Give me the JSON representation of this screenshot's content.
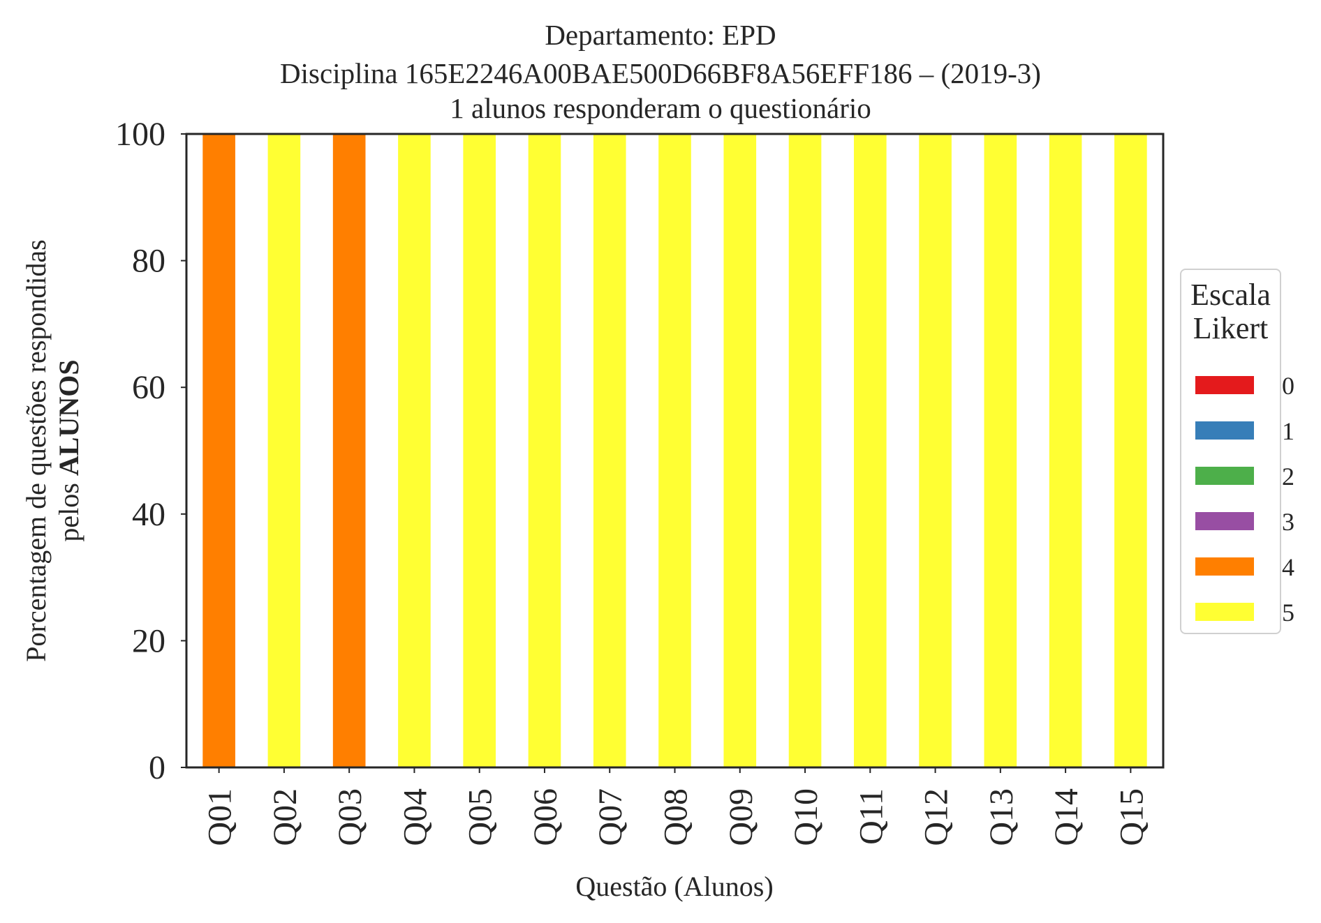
{
  "chart_data": {
    "type": "bar",
    "stacked": true,
    "title": [
      "Departamento: EPD",
      "Disciplina 165E2246A00BAE500D66BF8A56EFF186 – (2019-3)",
      "1 alunos responderam o questionário"
    ],
    "xlabel": "Questão (Alunos)",
    "ylabel_line1": "Porcentagem de questões respondidas",
    "ylabel_line2_prefix": "pelos ",
    "ylabel_line2_bold": "ALUNOS",
    "ylim": [
      0,
      100
    ],
    "yticks": [
      "0",
      "20",
      "40",
      "60",
      "80",
      "100"
    ],
    "categories": [
      "Q01",
      "Q02",
      "Q03",
      "Q04",
      "Q05",
      "Q06",
      "Q07",
      "Q08",
      "Q09",
      "Q10",
      "Q11",
      "Q12",
      "Q13",
      "Q14",
      "Q15"
    ],
    "legend": {
      "title_line1": "Escala",
      "title_line2": "Likert",
      "placement": "right"
    },
    "series": [
      {
        "name": "0",
        "color": "#e41a1c",
        "values": [
          0,
          0,
          0,
          0,
          0,
          0,
          0,
          0,
          0,
          0,
          0,
          0,
          0,
          0,
          0
        ]
      },
      {
        "name": "1",
        "color": "#377eb8",
        "values": [
          0,
          0,
          0,
          0,
          0,
          0,
          0,
          0,
          0,
          0,
          0,
          0,
          0,
          0,
          0
        ]
      },
      {
        "name": "2",
        "color": "#4daf4a",
        "values": [
          0,
          0,
          0,
          0,
          0,
          0,
          0,
          0,
          0,
          0,
          0,
          0,
          0,
          0,
          0
        ]
      },
      {
        "name": "3",
        "color": "#984ea3",
        "values": [
          0,
          0,
          0,
          0,
          0,
          0,
          0,
          0,
          0,
          0,
          0,
          0,
          0,
          0,
          0
        ]
      },
      {
        "name": "4",
        "color": "#ff7f00",
        "values": [
          100,
          0,
          100,
          0,
          0,
          0,
          0,
          0,
          0,
          0,
          0,
          0,
          0,
          0,
          0
        ]
      },
      {
        "name": "5",
        "color": "#ffff33",
        "values": [
          0,
          100,
          0,
          100,
          100,
          100,
          100,
          100,
          100,
          100,
          100,
          100,
          100,
          100,
          100
        ]
      }
    ]
  }
}
